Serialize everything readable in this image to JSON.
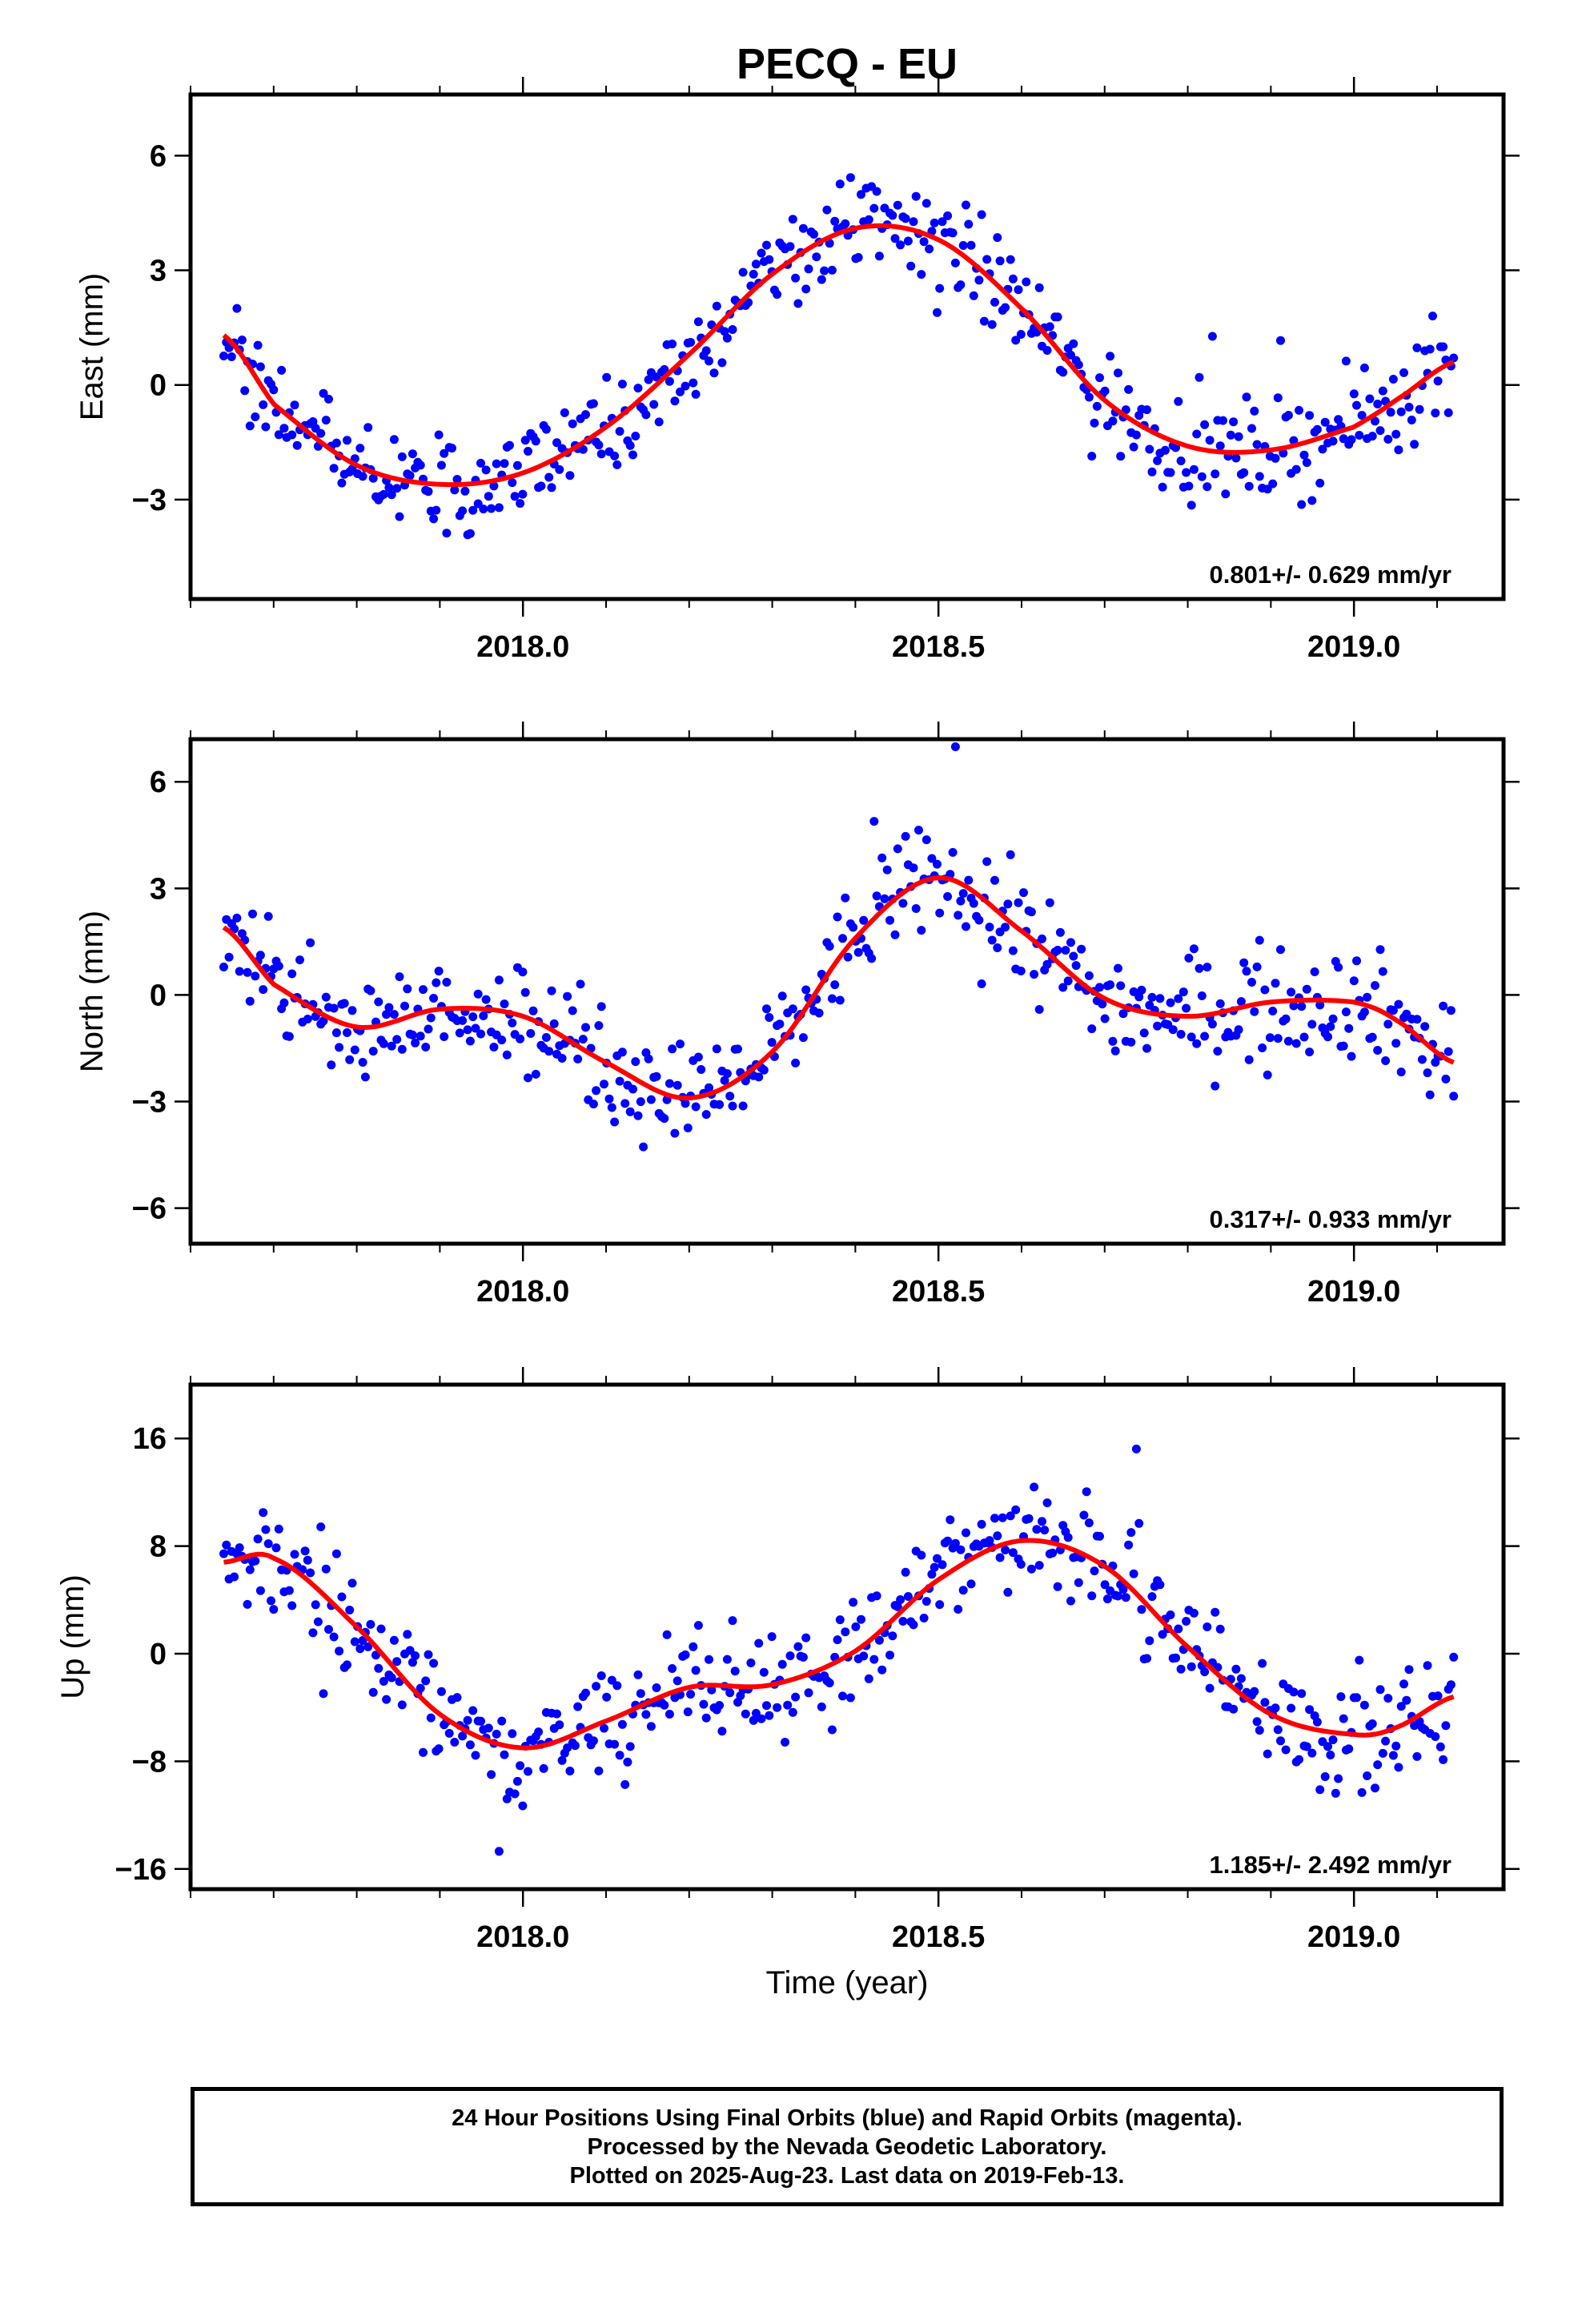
{
  "chart_data": [
    {
      "type": "scatter",
      "title": "PECQ - EU",
      "xlabel": "",
      "ylabel": "East (mm)",
      "xlim": [
        2017.6,
        2019.18
      ],
      "ylim": [
        -5.6,
        7.6
      ],
      "yticks": [
        -3,
        0,
        3,
        6
      ],
      "xticks": [
        2018.0,
        2018.5,
        2019.0
      ],
      "x_minor_step": 0.1,
      "rate_label": "0.801+/- 0.629 mm/yr",
      "observed_color": "#0000ff",
      "model_color": "#ff0000",
      "model": {
        "name": "fit",
        "x": [
          2017.64,
          2017.7,
          2017.8,
          2017.9,
          2018.0,
          2018.1,
          2018.2,
          2018.3,
          2018.4,
          2018.5,
          2018.6,
          2018.7,
          2018.8,
          2018.9,
          2019.0,
          2019.05,
          2019.12
        ],
        "y": [
          1.3,
          -0.5,
          -2.1,
          -2.6,
          -2.3,
          -1.1,
          0.8,
          2.9,
          4.1,
          3.8,
          2.0,
          -0.4,
          -1.6,
          -1.7,
          -1.1,
          -0.4,
          0.6
        ]
      }
    },
    {
      "type": "scatter",
      "title": "",
      "xlabel": "",
      "ylabel": "North (mm)",
      "xlim": [
        2017.6,
        2019.18
      ],
      "ylim": [
        -7.0,
        7.2
      ],
      "yticks": [
        -6,
        -3,
        0,
        3,
        6
      ],
      "xticks": [
        2018.0,
        2018.5,
        2019.0
      ],
      "x_minor_step": 0.1,
      "rate_label": "0.317+/- 0.933 mm/yr",
      "observed_color": "#0000ff",
      "model_color": "#ff0000",
      "model": {
        "name": "fit",
        "x": [
          2017.64,
          2017.7,
          2017.8,
          2017.9,
          2018.0,
          2018.1,
          2018.2,
          2018.3,
          2018.4,
          2018.5,
          2018.6,
          2018.7,
          2018.8,
          2018.9,
          2019.0,
          2019.05,
          2019.12
        ],
        "y": [
          1.9,
          0.3,
          -0.9,
          -0.4,
          -0.6,
          -1.9,
          -2.9,
          -1.6,
          1.6,
          3.3,
          1.8,
          -0.1,
          -0.6,
          -0.2,
          -0.2,
          -0.7,
          -1.9
        ]
      }
    },
    {
      "type": "scatter",
      "title": "",
      "xlabel": "Time (year)",
      "ylabel": "Up (mm)",
      "xlim": [
        2017.6,
        2019.18
      ],
      "ylim": [
        -17.5,
        20.0
      ],
      "yticks": [
        -16,
        -8,
        0,
        8,
        16
      ],
      "xticks": [
        2018.0,
        2018.5,
        2019.0
      ],
      "x_minor_step": 0.1,
      "rate_label": "1.185+/- 2.492 mm/yr",
      "observed_color": "#0000ff",
      "model_color": "#ff0000",
      "model": {
        "name": "fit",
        "x": [
          2017.64,
          2017.7,
          2017.8,
          2017.9,
          2018.0,
          2018.1,
          2018.2,
          2018.3,
          2018.4,
          2018.5,
          2018.6,
          2018.7,
          2018.8,
          2018.9,
          2019.0,
          2019.05,
          2019.12
        ],
        "y": [
          6.8,
          7.1,
          2.0,
          -4.5,
          -7.0,
          -5.0,
          -2.5,
          -2.3,
          0.2,
          5.5,
          8.4,
          6.5,
          0.5,
          -4.5,
          -6.0,
          -5.5,
          -3.2
        ]
      }
    }
  ],
  "footer": {
    "line1": "24 Hour Positions Using Final Orbits (blue) and Rapid Orbits (magenta).",
    "line2": "Processed by the Nevada Geodetic Laboratory.",
    "line3": "Plotted on 2025-Aug-23. Last data on 2019-Feb-13."
  }
}
